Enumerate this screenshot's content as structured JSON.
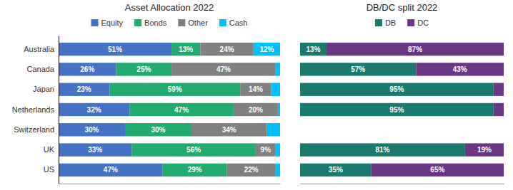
{
  "chart_data": [
    {
      "type": "bar",
      "orientation": "horizontal",
      "stacked": true,
      "title": "Asset Allocation 2022",
      "categories": [
        "Australia",
        "Canada",
        "Japan",
        "Netherlands",
        "Switzerland",
        "UK",
        "US"
      ],
      "series": [
        {
          "name": "Equity",
          "color": "#4472C4",
          "values": [
            51,
            26,
            23,
            32,
            30,
            33,
            47
          ],
          "value_labels": [
            "51%",
            "26%",
            "23%",
            "32%",
            "30%",
            "33%",
            "47%"
          ]
        },
        {
          "name": "Bonds",
          "color": "#22AA6F",
          "values": [
            13,
            25,
            59,
            47,
            30,
            56,
            29
          ],
          "value_labels": [
            "13%",
            "25%",
            "59%",
            "47%",
            "30%",
            "56%",
            "29%"
          ]
        },
        {
          "name": "Other",
          "color": "#808080",
          "values": [
            24,
            47,
            14,
            20,
            34,
            9,
            22
          ],
          "value_labels": [
            "24%",
            "47%",
            "14%",
            "20%",
            "34%",
            "9%",
            "22%"
          ]
        },
        {
          "name": "Cash",
          "color": "#00BFFF",
          "values": [
            12,
            2,
            4,
            1,
            6,
            2,
            2
          ],
          "value_labels": [
            "12%",
            null,
            null,
            null,
            null,
            null,
            null
          ]
        }
      ],
      "xlim": [
        0,
        100
      ],
      "xticks": [],
      "tick_labels": "y",
      "legend": "top",
      "data_labels": true,
      "grid": false
    },
    {
      "type": "bar",
      "orientation": "horizontal",
      "stacked": true,
      "title": "DB/DC split 2022",
      "categories": [
        "Australia",
        "Canada",
        "Japan",
        "Netherlands",
        "Switzerland",
        "UK",
        "US"
      ],
      "series": [
        {
          "name": "DB",
          "color": "#1a7a6e",
          "values": [
            13,
            57,
            95,
            95,
            0,
            81,
            35
          ],
          "value_labels": [
            "13%",
            "57%",
            "95%",
            "95%",
            null,
            "81%",
            "35%"
          ]
        },
        {
          "name": "DC",
          "color": "#6B3685",
          "values": [
            87,
            43,
            5,
            5,
            0,
            19,
            65
          ],
          "value_labels": [
            "87%",
            "43%",
            null,
            null,
            null,
            "19%",
            "65%"
          ]
        }
      ],
      "xlim": [
        0,
        100
      ],
      "xticks": [],
      "tick_labels": false,
      "legend": "top",
      "data_labels": true,
      "grid": false
    }
  ]
}
